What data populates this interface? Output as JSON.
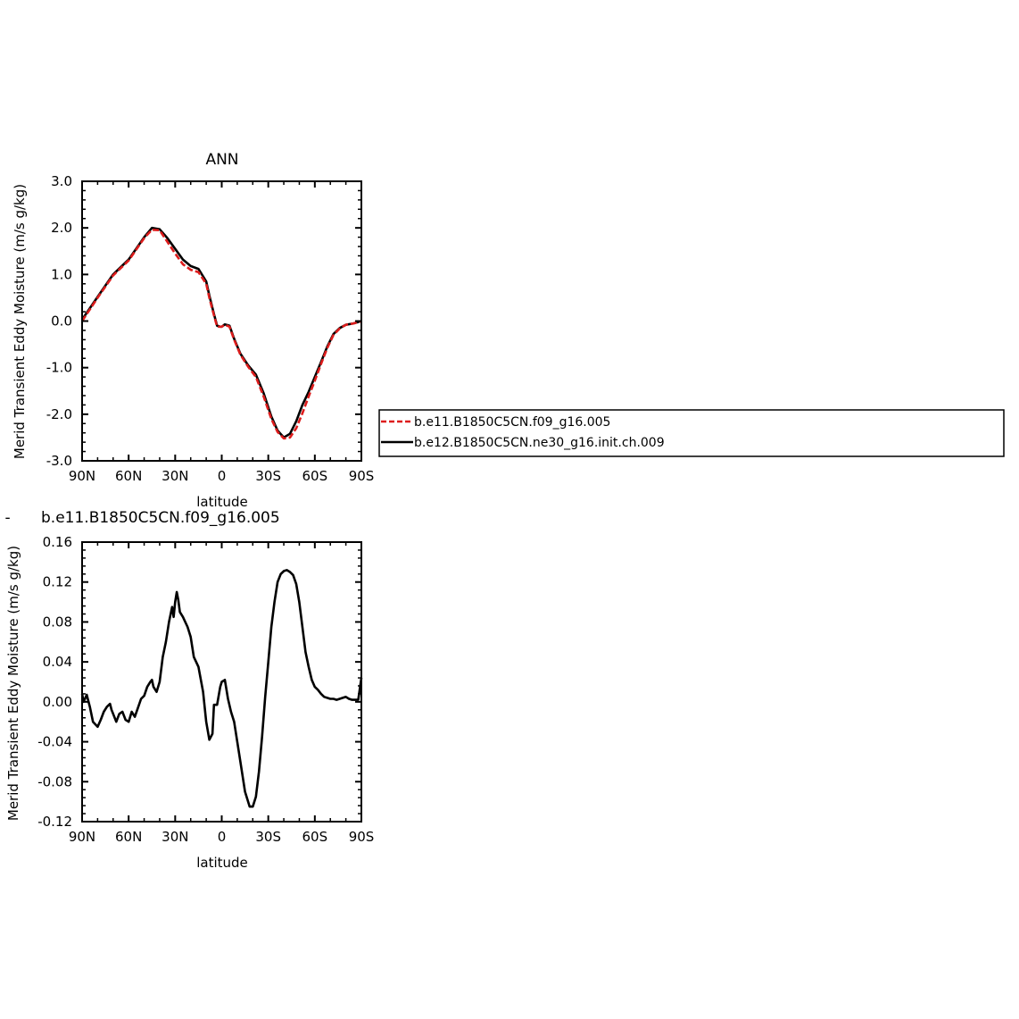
{
  "colors": {
    "red": "#dd1c1c",
    "black": "#000000",
    "background": "#ffffff"
  },
  "legend": {
    "entries": [
      {
        "label": "b.e11.B1850C5CN.f09_g16.005",
        "color": "#dd1c1c",
        "style": "dashed"
      },
      {
        "label": "b.e12.B1850C5CN.ne30_g16.init.ch.009",
        "color": "#000000",
        "style": "solid"
      }
    ],
    "placement": "right of top panel"
  },
  "chart_data": [
    {
      "type": "line",
      "title": "ANN",
      "xlabel": "latitude",
      "ylabel": "Merid Transient Eddy Moisture (m/s g/kg)",
      "xlim": [
        90,
        -90
      ],
      "ylim": [
        -3.0,
        3.0
      ],
      "grid": false,
      "x_tick_values": [
        90,
        60,
        30,
        0,
        -30,
        -60,
        -90
      ],
      "x_tick_labels": [
        "90N",
        "60N",
        "30N",
        "0",
        "30S",
        "60S",
        "90S"
      ],
      "y_tick_values": [
        3.0,
        2.0,
        1.0,
        0.0,
        -1.0,
        -2.0,
        -3.0
      ],
      "y_tick_labels": [
        "3.0",
        "2.0",
        "1.0",
        "0.0",
        "-1.0",
        "-2.0",
        "-3.0"
      ],
      "x": [
        90,
        80,
        70,
        60,
        50,
        45,
        40,
        35,
        30,
        25,
        20,
        15,
        10,
        8,
        5,
        3,
        1,
        0,
        -2,
        -5,
        -8,
        -12,
        -17,
        -22,
        -27,
        -32,
        -36,
        -40,
        -44,
        -48,
        -52,
        -56,
        -60,
        -64,
        -68,
        -72,
        -76,
        -80,
        -85,
        -90
      ],
      "series": [
        {
          "name": "b.e11.B1850C5CN.f09_g16.005",
          "color": "#dd1c1c",
          "dash": true,
          "values": [
            0.0,
            0.5,
            0.98,
            1.3,
            1.78,
            1.96,
            1.95,
            1.7,
            1.45,
            1.22,
            1.1,
            1.05,
            0.8,
            0.5,
            0.12,
            -0.12,
            -0.12,
            -0.12,
            -0.08,
            -0.12,
            -0.4,
            -0.72,
            -0.98,
            -1.2,
            -1.62,
            -2.1,
            -2.38,
            -2.52,
            -2.5,
            -2.3,
            -1.98,
            -1.62,
            -1.28,
            -0.92,
            -0.58,
            -0.3,
            -0.16,
            -0.08,
            -0.05,
            0.0
          ]
        },
        {
          "name": "b.e12.B1850C5CN.ne30_g16.init.ch.009",
          "color": "#000000",
          "dash": false,
          "values": [
            0.03,
            0.52,
            1.0,
            1.32,
            1.8,
            2.0,
            1.97,
            1.78,
            1.55,
            1.32,
            1.18,
            1.12,
            0.85,
            0.55,
            0.15,
            -0.1,
            -0.12,
            -0.12,
            -0.07,
            -0.1,
            -0.38,
            -0.7,
            -0.95,
            -1.15,
            -1.55,
            -2.05,
            -2.35,
            -2.5,
            -2.42,
            -2.15,
            -1.8,
            -1.52,
            -1.2,
            -0.88,
            -0.55,
            -0.28,
            -0.15,
            -0.08,
            -0.05,
            0.0
          ]
        }
      ]
    },
    {
      "type": "line",
      "title": "b.e11.B1850C5CN.f09_g16.005",
      "xlabel": "latitude",
      "ylabel": "Merid Transient Eddy Moisture (m/s g/kg)",
      "xlim": [
        90,
        -90
      ],
      "ylim": [
        -0.12,
        0.16
      ],
      "grid": false,
      "x_tick_values": [
        90,
        60,
        30,
        0,
        -30,
        -60,
        -90
      ],
      "x_tick_labels": [
        "90N",
        "60N",
        "30N",
        "0",
        "30S",
        "60S",
        "90S"
      ],
      "y_tick_values": [
        0.16,
        0.12,
        0.08,
        0.04,
        0.0,
        -0.04,
        -0.08,
        -0.12
      ],
      "y_tick_labels": [
        "0.16",
        "0.12",
        "0.08",
        "0.04",
        "0.00",
        "-0.04",
        "-0.08",
        "-0.12"
      ],
      "x": [
        90,
        89,
        87,
        85,
        83,
        80,
        78,
        76,
        74,
        72,
        71,
        70,
        68,
        66,
        64,
        62,
        60,
        58,
        56,
        54,
        52,
        50,
        48,
        46,
        45,
        44,
        42,
        40,
        38,
        36,
        34,
        32,
        31,
        30,
        29,
        28,
        27,
        25,
        22,
        20,
        18,
        15,
        12,
        10,
        8,
        6,
        5,
        3,
        1,
        0,
        -2,
        -4,
        -6,
        -8,
        -10,
        -12,
        -15,
        -18,
        -20,
        -22,
        -24,
        -26,
        -28,
        -30,
        -32,
        -34,
        -36,
        -38,
        -40,
        -42,
        -44,
        -46,
        -48,
        -50,
        -52,
        -54,
        -56,
        -58,
        -60,
        -62,
        -64,
        -66,
        -68,
        -70,
        -72,
        -74,
        -76,
        -78,
        -80,
        -82,
        -84,
        -86,
        -88,
        -90
      ],
      "series": [
        {
          "name": "",
          "color": "#000000",
          "dash": false,
          "values": [
            0.008,
            0.0,
            0.007,
            -0.005,
            -0.02,
            -0.025,
            -0.018,
            -0.01,
            -0.005,
            -0.002,
            -0.008,
            -0.012,
            -0.02,
            -0.012,
            -0.01,
            -0.018,
            -0.02,
            -0.01,
            -0.015,
            -0.006,
            0.003,
            0.006,
            0.015,
            0.02,
            0.022,
            0.015,
            0.01,
            0.02,
            0.045,
            0.06,
            0.08,
            0.095,
            0.085,
            0.1,
            0.11,
            0.102,
            0.09,
            0.085,
            0.075,
            0.065,
            0.045,
            0.035,
            0.01,
            -0.02,
            -0.038,
            -0.032,
            -0.003,
            -0.003,
            0.015,
            0.02,
            0.022,
            0.003,
            -0.01,
            -0.02,
            -0.04,
            -0.06,
            -0.09,
            -0.105,
            -0.105,
            -0.095,
            -0.07,
            -0.035,
            0.005,
            0.04,
            0.075,
            0.1,
            0.12,
            0.128,
            0.131,
            0.132,
            0.13,
            0.127,
            0.118,
            0.1,
            0.075,
            0.05,
            0.035,
            0.022,
            0.015,
            0.012,
            0.008,
            0.005,
            0.004,
            0.003,
            0.003,
            0.002,
            0.003,
            0.004,
            0.005,
            0.003,
            0.002,
            0.002,
            0.002,
            0.024
          ]
        }
      ]
    }
  ]
}
